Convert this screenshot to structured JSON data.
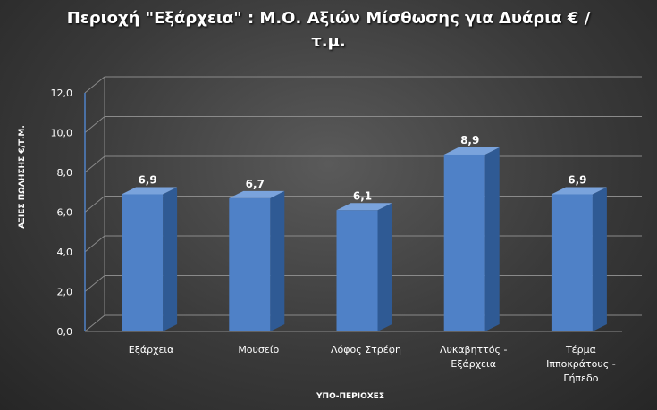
{
  "chart_data": {
    "type": "bar",
    "title": "Περιοχή \"Εξάρχεια\" : Μ.Ο. Αξιών Μίσθωσης για Δυάρια € / τ.μ.",
    "xlabel": "ΥΠΟ-ΠΕΡΙΟΧΕΣ",
    "ylabel": "ΑΞΙΕΣ ΠΩΛΗΣΗΣ €/Τ.Μ.",
    "ylim": [
      0,
      12
    ],
    "yticks": [
      "0,0",
      "2,0",
      "4,0",
      "6,0",
      "8,0",
      "10,0",
      "12,0"
    ],
    "categories": [
      [
        "Εξάρχεια"
      ],
      [
        "Μουσείο"
      ],
      [
        "Λόφος Στρέφη"
      ],
      [
        "Λυκαβηττός -",
        "Εξάρχεια"
      ],
      [
        "Τέρμα",
        "Ιπποκράτους -",
        "Γήπεδο"
      ]
    ],
    "values": [
      6.9,
      6.7,
      6.1,
      8.9,
      6.9
    ],
    "value_labels": [
      "6,9",
      "6,7",
      "6,1",
      "8,9",
      "6,9"
    ],
    "grid": true,
    "colors": {
      "bar_front": "#4f81c7",
      "bar_side": "#2f5a94",
      "bar_top": "#7aa3dc",
      "grid": "#8a8a8a"
    }
  }
}
